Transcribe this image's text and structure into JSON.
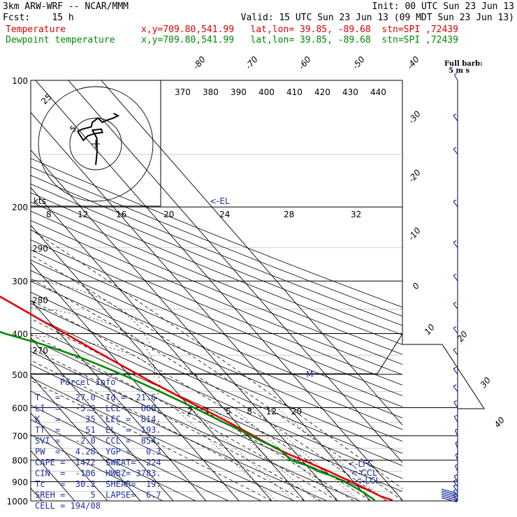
{
  "header": {
    "line1_left": "3km ARW-WRF -- NCAR/MMM",
    "line1_right": "Init: 00 UTC Sun 23 Jun 13",
    "line2_left": "Fcst:    15 h",
    "line2_right": "Valid: 15 UTC Sun 23 Jun 13 (09 MDT Sun 23 Jun 13)",
    "temp_label": "Temperature",
    "temp_info": "x,y=709.80,541.99   lat,lon= 39.85, -89.68  stn=SPI ,72439",
    "dew_label": "Dewpoint temperature",
    "dew_info": "x,y=709.80,541.99   lat,lon= 39.85, -89.68  stn=SPI ,72439"
  },
  "barb_key": {
    "line1": "Full barb:",
    "line2": "5 m s"
  },
  "hodograph": {
    "kts_label": "kts",
    "ring_label": "25",
    "speed_labels": [
      "8",
      "12",
      "16",
      "20",
      "24",
      "28",
      "32"
    ]
  },
  "parcel_info": {
    "title": "Parcel Info",
    "rows": [
      "T   =   27.0  Td =  21.6",
      "LI  =   -5.9  LCL =  888.",
      "K   =     35  LFC =  814.",
      "TT  =     51  EL  =  193.",
      "SVI =   -2.0  CCL =  854.",
      "PW  =   4.28  YGP =   0.3",
      "CAPE =  1472  SWEAT=  224",
      "CIN  =  -106  HWBZ= 3783.",
      "Tc   =  30.2  SHEAR=  19.",
      "SREH =     5  LAPSE=  6.7",
      "CELL = 194/08"
    ]
  },
  "level_marks": {
    "el": "<-EL",
    "lfc": "<-LFC",
    "ccl": "<-CCL",
    "lcl": "<-LCL",
    "m": "M"
  },
  "colors": {
    "temperature": "#e00000",
    "dewpoint": "#008800",
    "annot": "#1d2fa0",
    "barb": "#1d2fa0"
  },
  "chart_data": {
    "type": "line",
    "subtype": "skew-T log-p",
    "y_scale": "log",
    "ylim": [
      1000,
      100
    ],
    "xlim": [
      -45,
      45
    ],
    "pressure_ticks": [
      100,
      200,
      300,
      400,
      500,
      600,
      700,
      800,
      900,
      1000
    ],
    "isotherm_labels": [
      -80,
      -70,
      -60,
      -50,
      -40,
      -30,
      -20,
      -10,
      0,
      10,
      20,
      30,
      40
    ],
    "theta_labels": [
      370,
      380,
      390,
      400,
      410,
      420,
      430,
      440
    ],
    "theta_left_labels": [
      290,
      280,
      270
    ],
    "mixing_ratio_labels": [
      2,
      3,
      5,
      8,
      12,
      20
    ],
    "series": [
      {
        "name": "Temperature",
        "color": "#e00000",
        "points": [
          [
            996,
            27.0
          ],
          [
            975,
            24.4
          ],
          [
            950,
            22.8
          ],
          [
            925,
            21.2
          ],
          [
            900,
            19.4
          ],
          [
            875,
            17.2
          ],
          [
            850,
            15.2
          ],
          [
            825,
            12.8
          ],
          [
            800,
            10.4
          ],
          [
            775,
            7.7
          ],
          [
            750,
            5.4
          ],
          [
            725,
            3.5
          ],
          [
            700,
            1.8
          ],
          [
            675,
            -0.2
          ],
          [
            650,
            -2.2
          ],
          [
            625,
            -4.4
          ],
          [
            600,
            -6.9
          ],
          [
            575,
            -9.4
          ],
          [
            550,
            -11.9
          ],
          [
            525,
            -14.6
          ],
          [
            500,
            -17.1
          ],
          [
            475,
            -19.8
          ],
          [
            450,
            -22.5
          ],
          [
            425,
            -25.4
          ],
          [
            400,
            -28.3
          ],
          [
            375,
            -31.7
          ],
          [
            350,
            -35.0
          ],
          [
            325,
            -38.6
          ],
          [
            300,
            -42.1
          ],
          [
            275,
            -46.4
          ],
          [
            250,
            -50.9
          ],
          [
            225,
            -56.1
          ],
          [
            200,
            -61.3
          ],
          [
            175,
            -66.3
          ],
          [
            150,
            -69.5
          ],
          [
            125,
            -71.3
          ],
          [
            100,
            -71.7
          ]
        ]
      },
      {
        "name": "Dewpoint temperature",
        "color": "#008800",
        "points": [
          [
            996,
            21.6
          ],
          [
            975,
            20.9
          ],
          [
            950,
            20.0
          ],
          [
            925,
            18.8
          ],
          [
            900,
            17.2
          ],
          [
            875,
            15.4
          ],
          [
            850,
            12.0
          ],
          [
            825,
            10.3
          ],
          [
            800,
            6.6
          ],
          [
            775,
            6.5
          ],
          [
            750,
            5.9
          ],
          [
            725,
            3.1
          ],
          [
            700,
            1.0
          ],
          [
            675,
            -1.1
          ],
          [
            650,
            -3.8
          ],
          [
            625,
            -6.3
          ],
          [
            600,
            -8.9
          ],
          [
            575,
            -11.8
          ],
          [
            550,
            -14.9
          ],
          [
            525,
            -18.3
          ],
          [
            500,
            -22.0
          ],
          [
            475,
            -26.3
          ],
          [
            450,
            -31.4
          ],
          [
            425,
            -38.0
          ],
          [
            400,
            -46.8
          ],
          [
            375,
            -53.6
          ],
          [
            350,
            -54.1
          ],
          [
            325,
            -56.0
          ],
          [
            300,
            -58.8
          ],
          [
            275,
            -62.6
          ],
          [
            250,
            -66.2
          ],
          [
            225,
            -69.8
          ],
          [
            200,
            -74.0
          ],
          [
            175,
            -79.2
          ],
          [
            150,
            -82.5
          ],
          [
            125,
            -84.0
          ],
          [
            100,
            -85.0
          ]
        ]
      }
    ],
    "hodograph_points": [
      [
        0,
        0
      ],
      [
        0.6,
        -5.5
      ],
      [
        0.5,
        -12
      ],
      [
        -1.5,
        -15.5
      ],
      [
        2.5,
        -16
      ],
      [
        3,
        -14.5
      ],
      [
        -0.5,
        -14
      ],
      [
        -3.5,
        -13
      ],
      [
        -5.5,
        -11
      ],
      [
        -7.5,
        -14
      ],
      [
        -8,
        -15
      ],
      [
        -6,
        -16
      ],
      [
        -2,
        -17
      ],
      [
        -1.5,
        -19
      ],
      [
        1,
        -21
      ],
      [
        3,
        -19
      ],
      [
        5,
        -20
      ],
      [
        8,
        -21
      ],
      [
        10,
        -22
      ],
      [
        8,
        -23
      ]
    ],
    "wind_barbs": [
      {
        "p": 1000,
        "spd": 10
      },
      {
        "p": 975,
        "spd": 12
      },
      {
        "p": 950,
        "spd": 12
      },
      {
        "p": 925,
        "spd": 10
      },
      {
        "p": 900,
        "spd": 8
      },
      {
        "p": 850,
        "spd": 6
      },
      {
        "p": 800,
        "spd": 5
      },
      {
        "p": 750,
        "spd": 5
      },
      {
        "p": 700,
        "spd": 6
      },
      {
        "p": 650,
        "spd": 8
      },
      {
        "p": 600,
        "spd": 9
      },
      {
        "p": 550,
        "spd": 10
      },
      {
        "p": 500,
        "spd": 10
      },
      {
        "p": 450,
        "spd": 12
      },
      {
        "p": 400,
        "spd": 15
      },
      {
        "p": 350,
        "spd": 15
      },
      {
        "p": 300,
        "spd": 18
      },
      {
        "p": 250,
        "spd": 15
      },
      {
        "p": 200,
        "spd": 12
      },
      {
        "p": 150,
        "spd": 10
      },
      {
        "p": 125,
        "spd": 10
      },
      {
        "p": 100,
        "spd": 8
      }
    ]
  }
}
